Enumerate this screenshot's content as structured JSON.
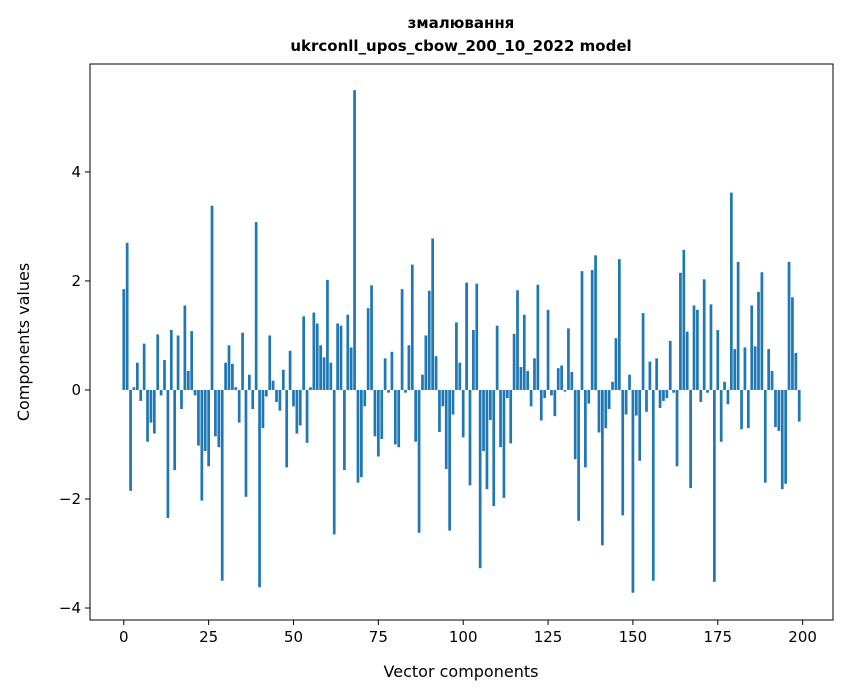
{
  "chart_data": {
    "type": "bar",
    "title_line1": "змалювання",
    "title_line2": "ukrconll_upos_cbow_200_10_2022 model",
    "xlabel": "Vector components",
    "ylabel": "Components values",
    "xlim": [
      -9.95,
      208.95
    ],
    "ylim": [
      -4.22,
      5.98
    ],
    "xticks": [
      0,
      25,
      50,
      75,
      100,
      125,
      150,
      175,
      200
    ],
    "yticks": [
      -4,
      -2,
      0,
      2,
      4
    ],
    "ytick_labels": [
      "−4",
      "−2",
      "0",
      "2",
      "4"
    ],
    "grid": false,
    "bar_color": "#1f77b4",
    "values": [
      1.85,
      2.7,
      -1.85,
      0.05,
      0.5,
      -0.2,
      0.85,
      -0.95,
      -0.6,
      -0.8,
      1.02,
      -0.1,
      0.55,
      -2.35,
      1.1,
      -1.47,
      1.0,
      -0.35,
      1.55,
      0.35,
      1.08,
      -0.1,
      -1.02,
      -2.03,
      -1.12,
      -1.4,
      3.38,
      -0.85,
      -1.05,
      -3.5,
      0.5,
      0.82,
      0.48,
      0.05,
      -0.6,
      1.05,
      -1.96,
      0.28,
      -0.35,
      3.08,
      -3.62,
      -0.7,
      -0.12,
      1.0,
      0.17,
      -0.22,
      -0.38,
      0.37,
      -1.42,
      0.72,
      -0.3,
      -0.8,
      -0.65,
      1.35,
      -0.97,
      0.05,
      1.42,
      1.22,
      0.82,
      0.6,
      2.02,
      0.5,
      -2.65,
      1.22,
      1.18,
      -1.47,
      1.38,
      0.78,
      5.5,
      -1.7,
      -1.6,
      -0.3,
      1.5,
      1.92,
      -0.85,
      -1.22,
      -0.9,
      0.58,
      -0.05,
      0.7,
      -1.0,
      -1.05,
      1.85,
      -0.05,
      0.82,
      2.3,
      -0.95,
      -2.62,
      0.28,
      1.0,
      1.82,
      2.78,
      0.62,
      -0.77,
      -0.3,
      -1.45,
      -2.58,
      -0.45,
      1.24,
      0.5,
      -0.87,
      1.97,
      -1.75,
      1.1,
      1.95,
      -3.27,
      -1.12,
      -1.82,
      -0.55,
      -2.13,
      1.18,
      -1.05,
      -1.98,
      -0.15,
      -0.98,
      1.03,
      1.83,
      0.42,
      1.38,
      0.35,
      -0.3,
      0.58,
      1.93,
      -0.56,
      -0.15,
      1.47,
      -0.1,
      -0.48,
      0.4,
      0.45,
      -0.03,
      1.13,
      0.33,
      -1.27,
      -2.4,
      2.18,
      -1.42,
      -0.25,
      2.2,
      2.47,
      -0.78,
      -2.85,
      -0.7,
      -0.35,
      0.15,
      0.95,
      2.4,
      -2.3,
      -0.45,
      0.28,
      -3.72,
      -0.47,
      -1.3,
      1.41,
      -0.4,
      0.52,
      -3.5,
      0.58,
      -0.33,
      -0.2,
      -0.15,
      0.9,
      -0.05,
      -1.4,
      2.15,
      2.57,
      1.07,
      -1.8,
      1.55,
      1.47,
      -0.22,
      2.03,
      -0.05,
      1.57,
      -3.52,
      1.1,
      -0.95,
      0.15,
      -0.26,
      3.62,
      0.75,
      2.35,
      -0.72,
      0.78,
      -0.7,
      1.55,
      0.8,
      1.8,
      2.16,
      -1.7,
      0.75,
      0.35,
      -0.68,
      -0.75,
      -1.82,
      -1.72,
      2.35,
      1.7,
      0.68,
      -0.58
    ]
  }
}
